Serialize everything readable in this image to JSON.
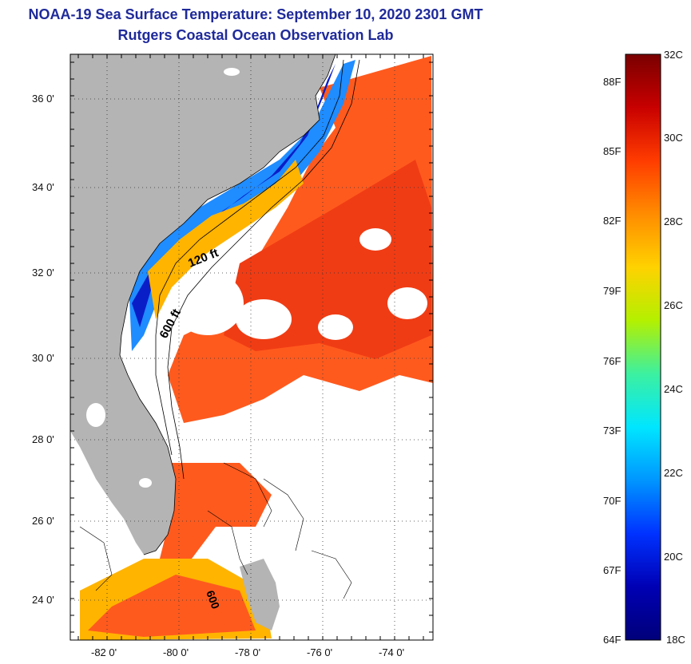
{
  "header": {
    "title_line1": "NOAA-19 Sea Surface Temperature:  September 10, 2020 2301 GMT",
    "title_line2": "Rutgers Coastal Ocean Observation Lab"
  },
  "map": {
    "lat_labels": [
      "36 0'",
      "34 0'",
      "32 0'",
      "30 0'",
      "28 0'",
      "26 0'",
      "24 0'"
    ],
    "lon_labels": [
      "-82 0'",
      "-80 0'",
      "-78 0'",
      "-76 0'",
      "-74 0'"
    ],
    "contour_labels": [
      "120 ft",
      "600 ft",
      "600"
    ],
    "colors": {
      "land": "#b4b4b4",
      "cloud": "#ffffff",
      "warm": "#ff5a1e",
      "hot": "#f03c14",
      "mid": "#ffb400",
      "cool": "#1f8cff",
      "cold": "#0a1ec8",
      "coast_line": "#000000"
    }
  },
  "colorbar": {
    "celsius_labels": [
      "32C",
      "30C",
      "28C",
      "26C",
      "24C",
      "22C",
      "20C",
      "18C"
    ],
    "fahrenheit_labels": [
      "88F",
      "85F",
      "82F",
      "79F",
      "76F",
      "73F",
      "70F",
      "67F",
      "64F"
    ],
    "stops": [
      "#7a0000",
      "#c80000",
      "#ff3c00",
      "#ff8c00",
      "#ffd200",
      "#b4f000",
      "#3cf0a0",
      "#00e6ff",
      "#0096ff",
      "#0032ff",
      "#0000b4",
      "#00007a"
    ]
  }
}
